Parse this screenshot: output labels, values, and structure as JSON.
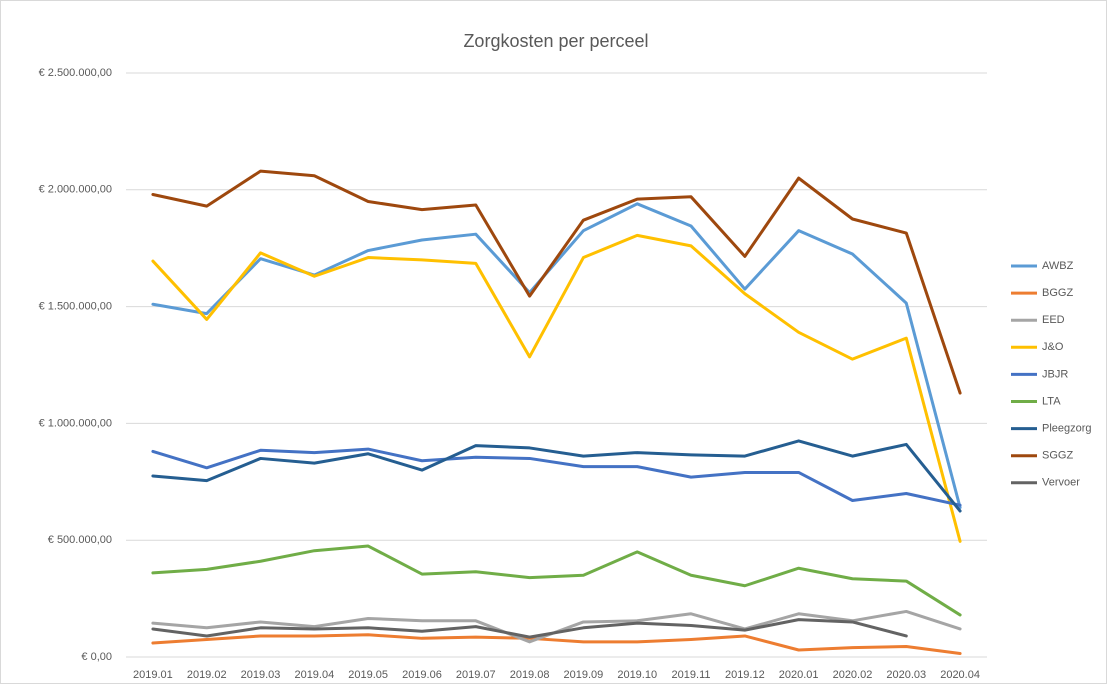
{
  "chart_data": {
    "type": "line",
    "title": "Zorgkosten per perceel",
    "categories": [
      "2019.01",
      "2019.02",
      "2019.03",
      "2019.04",
      "2019.05",
      "2019.06",
      "2019.07",
      "2019.08",
      "2019.09",
      "2019.10",
      "2019.11",
      "2019.12",
      "2020.01",
      "2020.02",
      "2020.03",
      "2020.04"
    ],
    "ylim": [
      0,
      2500000
    ],
    "yticks": [
      {
        "value": 0,
        "label": "€ 0,00"
      },
      {
        "value": 500000,
        "label": "€ 500.000,00"
      },
      {
        "value": 1000000,
        "label": "€ 1.000.000,00"
      },
      {
        "value": 1500000,
        "label": "€ 1.500.000,00"
      },
      {
        "value": 2000000,
        "label": "€ 2.000.000,00"
      },
      {
        "value": 2500000,
        "label": "€ 2.500.000,00"
      }
    ],
    "grid": true,
    "legend": "right",
    "series": [
      {
        "name": "AWBZ",
        "color": "#5b9bd5",
        "values": [
          1510000,
          1470000,
          1705000,
          1635000,
          1740000,
          1785000,
          1810000,
          1560000,
          1825000,
          1940000,
          1845000,
          1575000,
          1825000,
          1725000,
          1515000,
          640000
        ]
      },
      {
        "name": "BGGZ",
        "color": "#ed7d31",
        "values": [
          60000,
          75000,
          90000,
          90000,
          95000,
          80000,
          85000,
          80000,
          65000,
          65000,
          75000,
          90000,
          30000,
          40000,
          45000,
          15000
        ]
      },
      {
        "name": "EED",
        "color": "#a5a5a5",
        "values": [
          145000,
          125000,
          150000,
          130000,
          165000,
          155000,
          155000,
          65000,
          150000,
          155000,
          185000,
          120000,
          185000,
          155000,
          195000,
          120000
        ]
      },
      {
        "name": "J&O",
        "color": "#ffc000",
        "values": [
          1695000,
          1445000,
          1730000,
          1630000,
          1710000,
          1700000,
          1685000,
          1285000,
          1710000,
          1805000,
          1760000,
          1555000,
          1390000,
          1275000,
          1365000,
          495000
        ]
      },
      {
        "name": "JBJR",
        "color": "#4472c4",
        "values": [
          880000,
          810000,
          885000,
          875000,
          890000,
          840000,
          855000,
          850000,
          815000,
          815000,
          770000,
          790000,
          790000,
          670000,
          700000,
          650000
        ]
      },
      {
        "name": "LTA",
        "color": "#70ad47",
        "values": [
          360000,
          375000,
          410000,
          455000,
          475000,
          355000,
          365000,
          340000,
          350000,
          450000,
          350000,
          305000,
          380000,
          335000,
          325000,
          180000
        ]
      },
      {
        "name": "Pleegzorg",
        "color": "#255e91",
        "values": [
          775000,
          755000,
          850000,
          830000,
          870000,
          800000,
          905000,
          895000,
          860000,
          875000,
          865000,
          860000,
          925000,
          860000,
          910000,
          625000
        ]
      },
      {
        "name": "SGGZ",
        "color": "#9e480e",
        "values": [
          1980000,
          1930000,
          2080000,
          2060000,
          1950000,
          1915000,
          1935000,
          1545000,
          1870000,
          1960000,
          1970000,
          1715000,
          2050000,
          1875000,
          1815000,
          1130000
        ]
      },
      {
        "name": "Vervoer",
        "color": "#636363",
        "values": [
          120000,
          90000,
          125000,
          120000,
          125000,
          110000,
          130000,
          85000,
          125000,
          145000,
          135000,
          115000,
          160000,
          150000,
          90000,
          null
        ]
      }
    ]
  }
}
